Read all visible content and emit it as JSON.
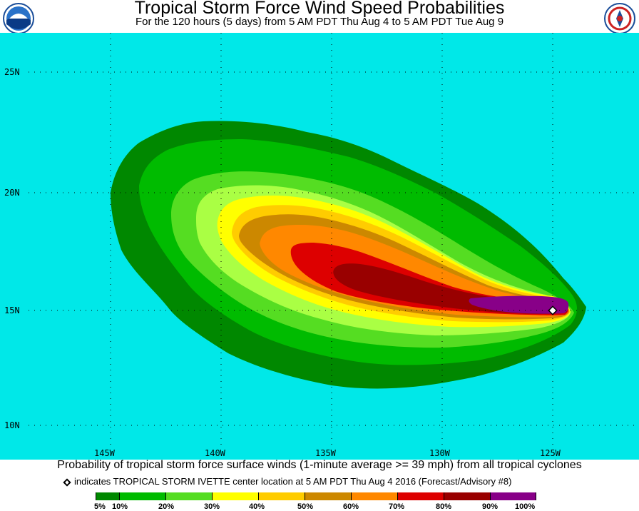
{
  "header": {
    "title": "Tropical Storm Force Wind Speed Probabilities",
    "subtitle": "For the 120 hours (5 days) from 5 AM PDT Thu Aug 4 to 5 AM PDT Tue Aug 9",
    "left_logo": "noaa-logo",
    "right_logo": "nws-logo"
  },
  "map": {
    "background_color": "#00e8e8",
    "lat_labels": [
      "25N",
      "20N",
      "15N",
      "10N"
    ],
    "lon_labels": [
      "145W",
      "140W",
      "135W",
      "130W",
      "125W"
    ],
    "storm_center": {
      "lon": "125.3W",
      "lat": "15.0N",
      "symbol": "diamond"
    }
  },
  "caption": "Probability of tropical storm force surface winds (1-minute average >= 39 mph) from all tropical cyclones",
  "center_note": "indicates TROPICAL STORM IVETTE center location at 5 AM PDT Thu Aug 4 2016 (Forecast/Advisory #8)",
  "legend": {
    "labels": [
      "5%",
      "10%",
      "20%",
      "30%",
      "40%",
      "50%",
      "60%",
      "70%",
      "80%",
      "90%",
      "100%"
    ],
    "colors": [
      "#008800",
      "#00bb00",
      "#55dd22",
      "#aaff44",
      "#ffff00",
      "#ffcc00",
      "#cc8800",
      "#ff8800",
      "#dd0000",
      "#990000",
      "#880088"
    ]
  }
}
